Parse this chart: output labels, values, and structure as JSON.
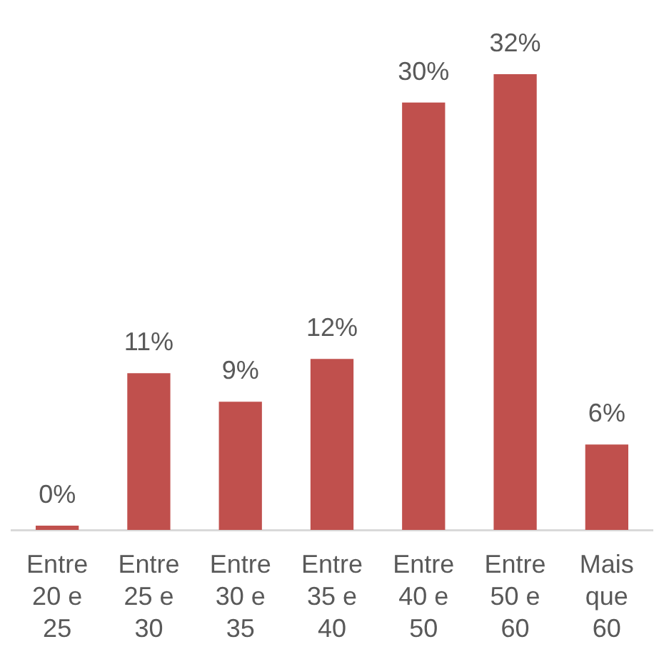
{
  "chart_data": {
    "type": "bar",
    "categories": [
      "Entre 20 e 25",
      "Entre 25 e 30",
      "Entre 30 e 35",
      "Entre 35 e 40",
      "Entre 40 e 50",
      "Entre 50 e 60",
      "Mais que 60"
    ],
    "values": [
      0.3,
      11,
      9,
      12,
      30,
      32,
      6
    ],
    "value_labels": [
      "0%",
      "11%",
      "9%",
      "12%",
      "30%",
      "32%",
      "6%"
    ],
    "color": "#c0504d",
    "grid": false,
    "legend": false
  }
}
